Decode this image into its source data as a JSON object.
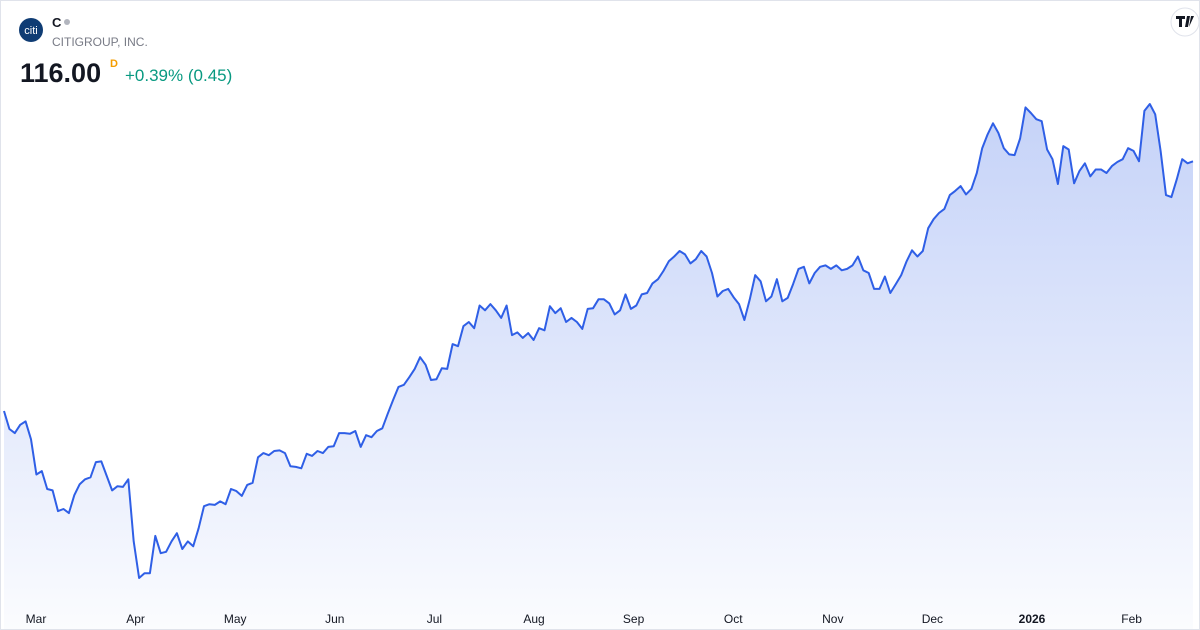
{
  "header": {
    "logo": "citi",
    "symbol": "C",
    "name": "CITIGROUP, INC.",
    "price": "116.00",
    "interval": "D",
    "change": "+0.39% (0.45)"
  },
  "chart_data": {
    "type": "line",
    "color": "#2f5fe6",
    "x_labels": [
      "Mar",
      "Apr",
      "May",
      "Jun",
      "Jul",
      "Aug",
      "Sep",
      "Oct",
      "Nov",
      "Dec",
      "2026",
      "Feb"
    ],
    "values": [
      79.8,
      77.2,
      76.6,
      77.8,
      78.3,
      75.7,
      70.6,
      71.1,
      68.5,
      68.3,
      65.3,
      65.6,
      65.0,
      67.6,
      69.2,
      69.9,
      70.2,
      72.4,
      72.5,
      70.4,
      68.3,
      68.9,
      68.8,
      69.9,
      60.9,
      55.6,
      56.3,
      56.3,
      61.7,
      59.2,
      59.4,
      60.9,
      62.1,
      59.8,
      60.9,
      60.2,
      62.8,
      66.0,
      66.3,
      66.2,
      66.7,
      66.3,
      68.5,
      68.2,
      67.5,
      69.1,
      69.4,
      73.1,
      73.7,
      73.4,
      74.0,
      74.1,
      73.7,
      71.8,
      71.7,
      71.5,
      73.6,
      73.3,
      74.0,
      73.7,
      74.6,
      74.7,
      76.6,
      76.6,
      76.5,
      76.9,
      74.6,
      76.3,
      76.0,
      76.9,
      77.3,
      79.4,
      81.4,
      83.3,
      83.6,
      84.7,
      85.9,
      87.6,
      86.5,
      84.3,
      84.4,
      86.0,
      85.9,
      89.5,
      89.2,
      92.1,
      92.7,
      91.8,
      95.1,
      94.4,
      95.3,
      94.4,
      93.3,
      95.1,
      90.8,
      91.2,
      90.4,
      91.1,
      90.1,
      91.8,
      91.5,
      95.0,
      94.0,
      94.7,
      92.7,
      93.3,
      92.7,
      91.7,
      94.6,
      94.7,
      96.0,
      96.0,
      95.4,
      93.8,
      94.4,
      96.7,
      94.6,
      95.1,
      96.7,
      96.9,
      98.3,
      98.9,
      100.1,
      101.5,
      102.2,
      103.0,
      102.5,
      101.2,
      101.8,
      103.0,
      102.2,
      99.8,
      96.4,
      97.2,
      97.5,
      96.3,
      95.3,
      93.0,
      96.0,
      99.5,
      98.6,
      95.7,
      96.4,
      98.9,
      95.7,
      96.2,
      98.2,
      100.4,
      100.7,
      98.3,
      99.8,
      100.7,
      100.9,
      100.4,
      100.9,
      100.2,
      100.4,
      100.9,
      102.2,
      100.2,
      99.8,
      97.5,
      97.5,
      99.3,
      96.9,
      98.2,
      99.5,
      101.5,
      103.1,
      102.2,
      103.0,
      106.3,
      107.6,
      108.5,
      109.1,
      111.1,
      111.7,
      112.4,
      111.2,
      112.0,
      114.3,
      117.9,
      119.9,
      121.5,
      120.1,
      117.9,
      117.0,
      116.9,
      119.3,
      123.8,
      123.0,
      122.1,
      121.8,
      117.7,
      116.3,
      112.7,
      118.2,
      117.7,
      112.8,
      114.6,
      115.7,
      113.8,
      114.8,
      114.8,
      114.3,
      115.3,
      115.9,
      116.3,
      117.9,
      117.5,
      116.0,
      123.3,
      124.3,
      122.8,
      117.5,
      111.1,
      110.8,
      113.4,
      116.3,
      115.7,
      116.0
    ]
  }
}
